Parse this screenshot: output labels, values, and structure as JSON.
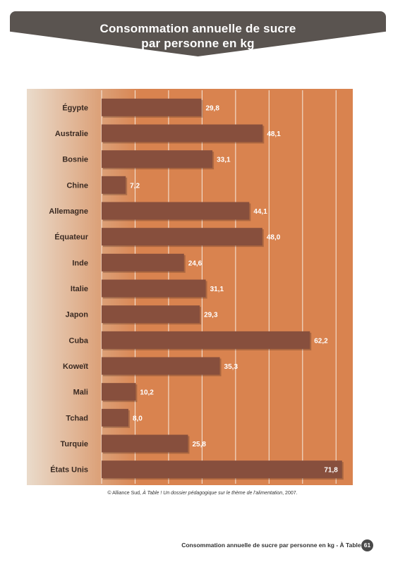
{
  "header": {
    "title_line1": "Consommation annuelle de sucre",
    "title_line2": "par personne en kg"
  },
  "chart_data": {
    "type": "bar",
    "orientation": "horizontal",
    "title": "Consommation annuelle de sucre par personne en kg",
    "categories": [
      "Égypte",
      "Australie",
      "Bosnie",
      "Chine",
      "Allemagne",
      "Équateur",
      "Inde",
      "Italie",
      "Japon",
      "Cuba",
      "Koweït",
      "Mali",
      "Tchad",
      "Turquie",
      "États Unis"
    ],
    "values": [
      29.8,
      48.1,
      33.1,
      7.2,
      44.1,
      48.0,
      24.6,
      31.1,
      29.3,
      62.2,
      35.3,
      10.2,
      8.0,
      25.8,
      71.8
    ],
    "value_labels": [
      "29,8",
      "48,1",
      "33,1",
      "7,2",
      "44,1",
      "48,0",
      "24,6",
      "31,1",
      "29,3",
      "62,2",
      "35,3",
      "10,2",
      "8,0",
      "25,8",
      "71,8"
    ],
    "xlim": [
      0,
      75
    ],
    "gridlines": [
      10,
      20,
      30,
      40,
      50,
      60,
      70
    ],
    "grid": true,
    "legend": "none",
    "colors": {
      "bar": "#874f3d",
      "bar_label": "#ffffff",
      "panel": "#d9834f",
      "label_panel_light": "#eadbcb",
      "grid": "#f4e2d4"
    }
  },
  "source": {
    "prefix": "© Alliance Sud, ",
    "title": "À Table ! Un dossier pédagogique sur le thème de l’alimentation",
    "suffix": ", 2007."
  },
  "footer": {
    "text": "Consommation annuelle de sucre par personne en kg - À Table ! -",
    "page": "61"
  }
}
